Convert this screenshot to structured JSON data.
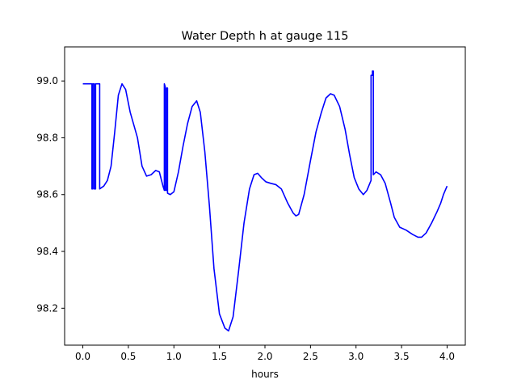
{
  "chart_data": {
    "type": "line",
    "title": "Water Depth h at gauge 115",
    "xlabel": "hours",
    "ylabel": "",
    "xlim": [
      -0.2,
      4.2
    ],
    "ylim": [
      98.07,
      99.12
    ],
    "xticks": [
      0.0,
      0.5,
      1.0,
      1.5,
      2.0,
      2.5,
      3.0,
      3.5,
      4.0
    ],
    "xtick_labels": [
      "0.0",
      "0.5",
      "1.0",
      "1.5",
      "2.0",
      "2.5",
      "3.0",
      "3.5",
      "4.0"
    ],
    "yticks": [
      98.2,
      98.4,
      98.6,
      98.8,
      99.0
    ],
    "ytick_labels": [
      "98.2",
      "98.4",
      "98.6",
      "98.8",
      "99.0"
    ],
    "grid": false,
    "series": [
      {
        "color": "#0000ff",
        "points": [
          [
            0.0,
            98.99
          ],
          [
            0.1,
            98.99
          ],
          [
            0.1,
            98.62
          ],
          [
            0.11,
            98.62
          ],
          [
            0.11,
            98.99
          ],
          [
            0.125,
            98.99
          ],
          [
            0.125,
            98.62
          ],
          [
            0.14,
            98.62
          ],
          [
            0.14,
            98.99
          ],
          [
            0.185,
            98.99
          ],
          [
            0.185,
            98.62
          ],
          [
            0.23,
            98.63
          ],
          [
            0.27,
            98.65
          ],
          [
            0.31,
            98.7
          ],
          [
            0.35,
            98.82
          ],
          [
            0.39,
            98.95
          ],
          [
            0.43,
            98.99
          ],
          [
            0.47,
            98.97
          ],
          [
            0.52,
            98.89
          ],
          [
            0.6,
            98.8
          ],
          [
            0.65,
            98.7
          ],
          [
            0.7,
            98.665
          ],
          [
            0.75,
            98.67
          ],
          [
            0.8,
            98.685
          ],
          [
            0.84,
            98.68
          ],
          [
            0.88,
            98.63
          ],
          [
            0.895,
            98.615
          ],
          [
            0.895,
            98.99
          ],
          [
            0.905,
            98.98
          ],
          [
            0.905,
            98.615
          ],
          [
            0.92,
            98.615
          ],
          [
            0.92,
            98.975
          ],
          [
            0.93,
            98.975
          ],
          [
            0.93,
            98.605
          ],
          [
            0.96,
            98.6
          ],
          [
            1.0,
            98.61
          ],
          [
            1.05,
            98.68
          ],
          [
            1.1,
            98.77
          ],
          [
            1.15,
            98.85
          ],
          [
            1.2,
            98.91
          ],
          [
            1.25,
            98.93
          ],
          [
            1.29,
            98.89
          ],
          [
            1.34,
            98.75
          ],
          [
            1.39,
            98.56
          ],
          [
            1.44,
            98.34
          ],
          [
            1.5,
            98.18
          ],
          [
            1.56,
            98.13
          ],
          [
            1.6,
            98.12
          ],
          [
            1.65,
            98.17
          ],
          [
            1.71,
            98.33
          ],
          [
            1.77,
            98.5
          ],
          [
            1.83,
            98.62
          ],
          [
            1.88,
            98.67
          ],
          [
            1.92,
            98.675
          ],
          [
            1.96,
            98.66
          ],
          [
            2.01,
            98.645
          ],
          [
            2.06,
            98.64
          ],
          [
            2.12,
            98.635
          ],
          [
            2.18,
            98.62
          ],
          [
            2.25,
            98.57
          ],
          [
            2.31,
            98.535
          ],
          [
            2.34,
            98.525
          ],
          [
            2.37,
            98.53
          ],
          [
            2.43,
            98.6
          ],
          [
            2.5,
            98.72
          ],
          [
            2.56,
            98.82
          ],
          [
            2.62,
            98.89
          ],
          [
            2.67,
            98.94
          ],
          [
            2.72,
            98.955
          ],
          [
            2.76,
            98.95
          ],
          [
            2.82,
            98.91
          ],
          [
            2.88,
            98.83
          ],
          [
            2.93,
            98.74
          ],
          [
            2.98,
            98.66
          ],
          [
            3.03,
            98.62
          ],
          [
            3.08,
            98.6
          ],
          [
            3.12,
            98.615
          ],
          [
            3.165,
            98.65
          ],
          [
            3.165,
            99.02
          ],
          [
            3.18,
            99.02
          ],
          [
            3.18,
            99.035
          ],
          [
            3.19,
            99.035
          ],
          [
            3.19,
            98.67
          ],
          [
            3.22,
            98.68
          ],
          [
            3.27,
            98.67
          ],
          [
            3.32,
            98.64
          ],
          [
            3.38,
            98.57
          ],
          [
            3.42,
            98.52
          ],
          [
            3.48,
            98.485
          ],
          [
            3.55,
            98.475
          ],
          [
            3.62,
            98.46
          ],
          [
            3.68,
            98.45
          ],
          [
            3.72,
            98.45
          ],
          [
            3.77,
            98.465
          ],
          [
            3.83,
            98.5
          ],
          [
            3.89,
            98.54
          ],
          [
            3.93,
            98.57
          ],
          [
            3.96,
            98.6
          ],
          [
            4.0,
            98.63
          ]
        ]
      }
    ]
  }
}
